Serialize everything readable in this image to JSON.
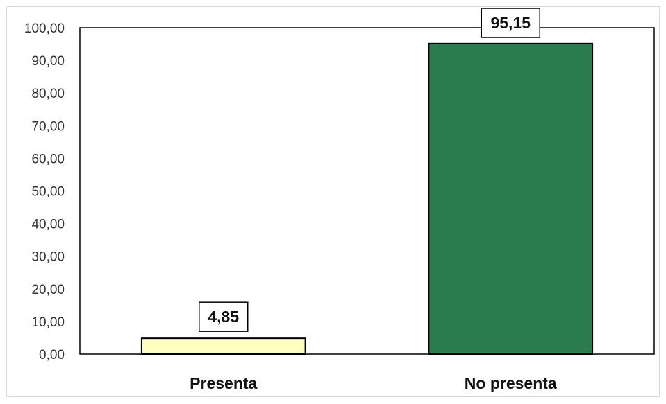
{
  "chart_data": {
    "type": "bar",
    "categories": [
      "Presenta",
      "No presenta"
    ],
    "values": [
      4.85,
      95.15
    ],
    "value_labels": [
      "4,85",
      "95,15"
    ],
    "ylim": [
      0,
      100
    ],
    "yticks": [
      0,
      10,
      20,
      30,
      40,
      50,
      60,
      70,
      80,
      90,
      100
    ],
    "ytick_labels": [
      "0,00",
      "10,00",
      "20,00",
      "30,00",
      "40,00",
      "50,00",
      "60,00",
      "70,00",
      "80,00",
      "90,00",
      "100,00"
    ],
    "title": "",
    "xlabel": "",
    "ylabel": "",
    "grid": false,
    "legend": "none",
    "bar_colors": [
      "#FFFFC0",
      "#2A7B50"
    ],
    "outline_color": "#000000"
  }
}
